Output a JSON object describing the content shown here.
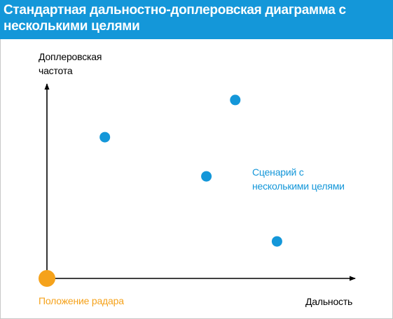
{
  "title": {
    "line1": "Стандартная дальностно-доплеровская диаграмма с",
    "line2": "несколькими целями"
  },
  "axes": {
    "y_label_line1": "Доплеровская",
    "y_label_line2": "частота",
    "x_label": "Дальность"
  },
  "scenario_label": {
    "line1": "Сценарий с",
    "line2": "несколькими целями"
  },
  "radar_label": "Положение радара",
  "colors": {
    "title_bar": "#1497d9",
    "target": "#1497d9",
    "radar": "#f5a21b",
    "axis": "#000000"
  },
  "targets": [
    {
      "range": 0.197,
      "doppler": 0.721
    },
    {
      "range": 0.542,
      "doppler": 0.521
    },
    {
      "range": 0.64,
      "doppler": 0.911
    },
    {
      "range": 0.782,
      "doppler": 0.189
    }
  ]
}
